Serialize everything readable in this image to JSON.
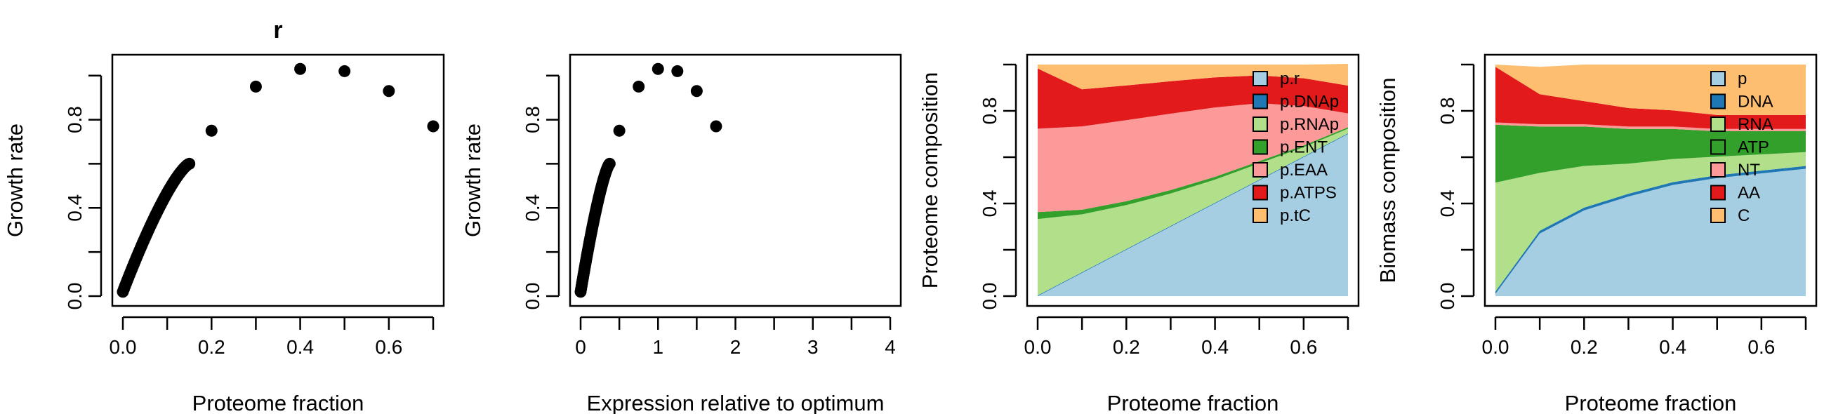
{
  "figure": {
    "background": "#ffffff",
    "panels_count": 4
  },
  "chart_data": [
    {
      "type": "scatter",
      "title": "r",
      "xlabel": "Proteome fraction",
      "ylabel": "Growth rate",
      "xlim": [
        0,
        0.7
      ],
      "ylim": [
        0,
        1.05
      ],
      "x_ticks": [
        0,
        0.1,
        0.2,
        0.3,
        0.4,
        0.5,
        0.6,
        0.7
      ],
      "x_tick_labels": [
        "0.0",
        "",
        "0.2",
        "",
        "0.4",
        "",
        "0.6",
        ""
      ],
      "y_ticks": [
        0,
        0.2,
        0.4,
        0.6,
        0.8,
        1.0
      ],
      "y_tick_labels": [
        "0.0",
        "",
        "0.4",
        "",
        "0.8",
        ""
      ],
      "dense_curve": {
        "x_from": 0.0,
        "x_to": 0.15,
        "y_from": 0.02,
        "y_to": 0.6
      },
      "points": [
        {
          "x": 0.2,
          "y": 0.75
        },
        {
          "x": 0.3,
          "y": 0.95
        },
        {
          "x": 0.4,
          "y": 1.03
        },
        {
          "x": 0.5,
          "y": 1.02
        },
        {
          "x": 0.6,
          "y": 0.93
        },
        {
          "x": 0.7,
          "y": 0.77
        }
      ],
      "marker_color": "#000000"
    },
    {
      "type": "scatter",
      "title": "",
      "xlabel": "Expression relative to optimum",
      "ylabel": "Growth rate",
      "xlim": [
        0,
        4
      ],
      "ylim": [
        0,
        1.05
      ],
      "x_ticks": [
        0,
        0.5,
        1,
        1.5,
        2,
        2.5,
        3,
        3.5,
        4
      ],
      "x_tick_labels": [
        "0",
        "",
        "1",
        "",
        "2",
        "",
        "3",
        "",
        "4"
      ],
      "y_ticks": [
        0,
        0.2,
        0.4,
        0.6,
        0.8,
        1.0
      ],
      "y_tick_labels": [
        "0.0",
        "",
        "0.4",
        "",
        "0.8",
        ""
      ],
      "dense_curve": {
        "x_from": 0.0,
        "x_to": 0.375,
        "y_from": 0.02,
        "y_to": 0.6
      },
      "points": [
        {
          "x": 0.5,
          "y": 0.75
        },
        {
          "x": 0.75,
          "y": 0.95
        },
        {
          "x": 1.0,
          "y": 1.03
        },
        {
          "x": 1.25,
          "y": 1.02
        },
        {
          "x": 1.5,
          "y": 0.93
        },
        {
          "x": 1.75,
          "y": 0.77
        }
      ],
      "marker_color": "#000000"
    },
    {
      "type": "area",
      "title": "",
      "xlabel": "Proteome fraction",
      "ylabel": "Proteome composition",
      "xlim": [
        0,
        0.7
      ],
      "ylim": [
        0,
        1.0
      ],
      "x_ticks": [
        0,
        0.1,
        0.2,
        0.3,
        0.4,
        0.5,
        0.6,
        0.7
      ],
      "x_tick_labels": [
        "0.0",
        "",
        "0.2",
        "",
        "0.4",
        "",
        "0.6",
        ""
      ],
      "y_ticks": [
        0,
        0.2,
        0.4,
        0.6,
        0.8,
        1.0
      ],
      "y_tick_labels": [
        "0.0",
        "",
        "0.4",
        "",
        "0.8",
        ""
      ],
      "x": [
        0.0,
        0.1,
        0.2,
        0.3,
        0.4,
        0.5,
        0.6,
        0.7
      ],
      "legend_position": "top-right",
      "series": [
        {
          "name": "p.r",
          "color": "#a6cee3",
          "values": [
            0.0,
            0.1,
            0.2,
            0.3,
            0.4,
            0.5,
            0.6,
            0.7
          ]
        },
        {
          "name": "p.DNAp",
          "color": "#1f78b4",
          "values": [
            0.003,
            0.003,
            0.003,
            0.003,
            0.003,
            0.003,
            0.003,
            0.003
          ]
        },
        {
          "name": "p.RNAp",
          "color": "#b2df8a",
          "values": [
            0.33,
            0.25,
            0.19,
            0.14,
            0.1,
            0.07,
            0.04,
            0.02
          ]
        },
        {
          "name": "p.ENT",
          "color": "#33a02c",
          "values": [
            0.03,
            0.02,
            0.017,
            0.015,
            0.012,
            0.01,
            0.008,
            0.006
          ]
        },
        {
          "name": "p.EAA",
          "color": "#fb9a99",
          "values": [
            0.36,
            0.36,
            0.35,
            0.33,
            0.3,
            0.25,
            0.17,
            0.06
          ]
        },
        {
          "name": "p.ATPS",
          "color": "#e31a1c",
          "values": [
            0.26,
            0.16,
            0.15,
            0.14,
            0.13,
            0.12,
            0.12,
            0.12
          ]
        },
        {
          "name": "p.tC",
          "color": "#fdbf6f",
          "values": [
            0.017,
            0.107,
            0.09,
            0.072,
            0.055,
            0.047,
            0.059,
            0.094
          ]
        }
      ]
    },
    {
      "type": "area",
      "title": "",
      "xlabel": "Proteome fraction",
      "ylabel": "Biomass composition",
      "xlim": [
        0,
        0.7
      ],
      "ylim": [
        0,
        1.0
      ],
      "x_ticks": [
        0,
        0.1,
        0.2,
        0.3,
        0.4,
        0.5,
        0.6,
        0.7
      ],
      "x_tick_labels": [
        "0.0",
        "",
        "0.2",
        "",
        "0.4",
        "",
        "0.6",
        ""
      ],
      "y_ticks": [
        0,
        0.2,
        0.4,
        0.6,
        0.8,
        1.0
      ],
      "y_tick_labels": [
        "0.0",
        "",
        "0.4",
        "",
        "0.8",
        ""
      ],
      "x": [
        0.0,
        0.1,
        0.2,
        0.3,
        0.4,
        0.5,
        0.6,
        0.7
      ],
      "legend_position": "top-right",
      "series": [
        {
          "name": "p",
          "color": "#a6cee3",
          "values": [
            0.01,
            0.27,
            0.37,
            0.43,
            0.48,
            0.51,
            0.53,
            0.55
          ]
        },
        {
          "name": "DNA",
          "color": "#1f78b4",
          "values": [
            0.01,
            0.012,
            0.012,
            0.012,
            0.012,
            0.012,
            0.012,
            0.012
          ]
        },
        {
          "name": "RNA",
          "color": "#b2df8a",
          "values": [
            0.47,
            0.25,
            0.18,
            0.13,
            0.1,
            0.08,
            0.07,
            0.06
          ]
        },
        {
          "name": "ATP",
          "color": "#33a02c",
          "values": [
            0.25,
            0.2,
            0.17,
            0.15,
            0.13,
            0.11,
            0.1,
            0.09
          ]
        },
        {
          "name": "NT",
          "color": "#fb9a99",
          "values": [
            0.01,
            0.01,
            0.01,
            0.01,
            0.01,
            0.01,
            0.01,
            0.01
          ]
        },
        {
          "name": "AA",
          "color": "#e31a1c",
          "values": [
            0.24,
            0.13,
            0.1,
            0.08,
            0.07,
            0.06,
            0.06,
            0.06
          ]
        },
        {
          "name": "C",
          "color": "#fdbf6f",
          "values": [
            0.01,
            0.118,
            0.158,
            0.188,
            0.198,
            0.218,
            0.218,
            0.218
          ]
        }
      ]
    }
  ]
}
